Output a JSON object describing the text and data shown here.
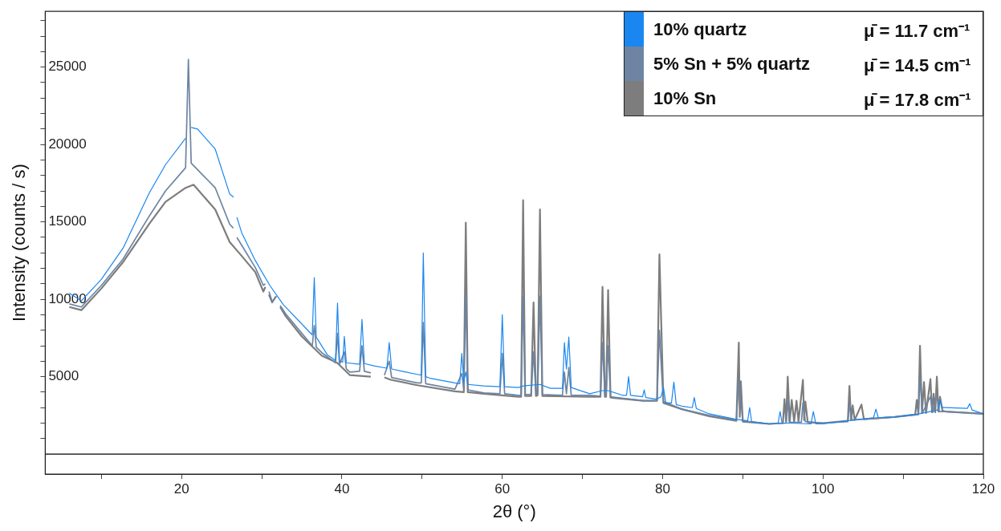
{
  "chart_data": {
    "type": "line",
    "xlabel": "2θ (°)",
    "ylabel": "Intensity (counts / s)",
    "xlim": [
      3,
      120
    ],
    "ylim": [
      -1300,
      28600
    ],
    "xticks": [
      {
        "value": 10,
        "label": null
      },
      20,
      {
        "value": 30,
        "label": null
      },
      40,
      {
        "value": 50,
        "label": null
      },
      60,
      {
        "value": 70,
        "label": null
      },
      80,
      {
        "value": 90,
        "label": null
      },
      100,
      {
        "value": 110,
        "label": null
      },
      120
    ],
    "yticks": [
      {
        "value": 1000,
        "label": null
      },
      {
        "value": 2000,
        "label": null
      },
      {
        "value": 3000,
        "label": null
      },
      {
        "value": 4000,
        "label": null
      },
      5000,
      {
        "value": 6000,
        "label": null
      },
      {
        "value": 7000,
        "label": null
      },
      {
        "value": 8000,
        "label": null
      },
      {
        "value": 9000,
        "label": null
      },
      10000,
      {
        "value": 11000,
        "label": null
      },
      {
        "value": 12000,
        "label": null
      },
      {
        "value": 13000,
        "label": null
      },
      {
        "value": 14000,
        "label": null
      },
      15000,
      {
        "value": 16000,
        "label": null
      },
      {
        "value": 17000,
        "label": null
      },
      {
        "value": 18000,
        "label": null
      },
      {
        "value": 19000,
        "label": null
      },
      20000,
      {
        "value": 21000,
        "label": null
      },
      {
        "value": 22000,
        "label": null
      },
      {
        "value": 23000,
        "label": null
      },
      {
        "value": 24000,
        "label": null
      },
      25000,
      {
        "value": 26000,
        "label": null
      },
      {
        "value": 27000,
        "label": null
      },
      {
        "value": 28000,
        "label": null
      }
    ],
    "legend": "top right",
    "grid": false,
    "ref_lines": [
      {
        "axis": "y",
        "value": 0,
        "color": "#000000"
      }
    ],
    "annotations": [
      "μ̄ = 11.7 cm⁻¹",
      "μ̄ = 14.5 cm⁻¹",
      "μ̄ = 17.8 cm⁻¹"
    ],
    "series": [
      {
        "name": "10% quartz",
        "color": "#1a87f0",
        "x": [
          6,
          7.5,
          10,
          12.7,
          16,
          18,
          20.5,
          20.85,
          21.2,
          22,
          24.2,
          26,
          26.5,
          26.65,
          26.9,
          27.5,
          29.2,
          31,
          32.7,
          35,
          36.3,
          36.55,
          36.8,
          38.2,
          39.2,
          39.45,
          39.7,
          40.1,
          40.3,
          40.55,
          42.2,
          42.5,
          42.8,
          44,
          45.6,
          45.9,
          46.2,
          47.5,
          49.4,
          49.9,
          50.15,
          50.45,
          51,
          54.1,
          54.7,
          54.95,
          55.2,
          55.45,
          55.7,
          57.7,
          59.7,
          60,
          60.3,
          62,
          62.6,
          64.7,
          66,
          67.5,
          67.75,
          68,
          68.3,
          68.6,
          70.9,
          72.5,
          73.2,
          75,
          75.5,
          75.75,
          76,
          77.5,
          77.7,
          77.9,
          79.2,
          79.8,
          80.1,
          80.4,
          81.1,
          81.4,
          81.7,
          82.4,
          83.7,
          83.95,
          84.2,
          85.8,
          89.1,
          90.6,
          90.85,
          91.1,
          93.3,
          94.4,
          94.65,
          94.9,
          96,
          98.5,
          98.8,
          99.1,
          100,
          103,
          106.3,
          106.6,
          106.9,
          108.9,
          112,
          114.3,
          114.6,
          114.9,
          115.3,
          118,
          118.3,
          118.6,
          120
        ],
        "values": [
          10400,
          9900,
          11300,
          13300,
          16900,
          18700,
          20400,
          null,
          21100,
          21000,
          19700,
          16800,
          16600,
          null,
          15300,
          14300,
          12500,
          10900,
          9650,
          8400,
          7700,
          11400,
          7550,
          6400,
          6050,
          9750,
          6000,
          5950,
          7600,
          5900,
          5800,
          8700,
          5850,
          5700,
          5550,
          7200,
          5500,
          5350,
          5150,
          5100,
          13000,
          5000,
          4900,
          4600,
          4550,
          6500,
          4700,
          5300,
          4500,
          4400,
          4350,
          9000,
          4350,
          4300,
          4400,
          4500,
          4250,
          4250,
          7200,
          5500,
          7560,
          4300,
          3900,
          4100,
          4100,
          3800,
          3800,
          5000,
          3800,
          3700,
          4150,
          3650,
          3550,
          3700,
          4300,
          3300,
          3300,
          4650,
          3200,
          3100,
          3000,
          3650,
          2950,
          2600,
          2250,
          2150,
          3000,
          2100,
          1950,
          2000,
          2750,
          2000,
          2000,
          1950,
          2750,
          1950,
          1950,
          2150,
          2350,
          2900,
          2350,
          2400,
          2600,
          2850,
          3500,
          3000,
          3000,
          2950,
          3250,
          2850,
          2600
        ]
      },
      {
        "name": "5% Sn + 5% quartz",
        "color": "#6d85a3",
        "x": [
          6,
          7.5,
          10,
          12.7,
          16,
          18,
          20.5,
          20.85,
          21.2,
          24.2,
          26,
          26.45,
          26.65,
          26.9,
          29.2,
          30.2,
          30.45,
          30.65,
          30.9,
          31.3,
          31.8,
          32,
          32.3,
          33,
          35,
          36.3,
          36.55,
          36.8,
          37.5,
          39.2,
          39.45,
          39.7,
          40.3,
          40.55,
          41,
          42.2,
          42.5,
          42.8,
          43.6,
          43.9,
          44.95,
          45.3,
          45.9,
          46.2,
          49.4,
          49.9,
          50.15,
          50.45,
          54.1,
          54.95,
          55.2,
          55.45,
          55.7,
          57.7,
          59.7,
          60,
          60.3,
          62,
          62.35,
          62.6,
          62.85,
          63.6,
          63.9,
          64.2,
          64.4,
          64.7,
          65,
          67.5,
          67.75,
          68,
          68.3,
          68.6,
          70.9,
          72.25,
          72.5,
          72.8,
          72.95,
          73.2,
          73.5,
          77.6,
          79.3,
          79.6,
          79.85,
          80.1,
          82.4,
          85.8,
          89.2,
          89.5,
          89.75,
          90,
          93.3,
          95.4,
          95.6,
          95.8,
          97.3,
          97.5,
          97.8,
          100,
          103.1,
          103.3,
          103.6,
          108.9,
          111.9,
          112.1,
          112.4,
          113.4,
          113.7,
          114.2,
          114.5,
          115.3,
          120
        ],
        "values": [
          9700,
          9500,
          10900,
          12600,
          15400,
          17000,
          18500,
          25500,
          18800,
          17200,
          14850,
          14600,
          null,
          14000,
          12050,
          10900,
          11000,
          null,
          10500,
          9850,
          10200,
          null,
          9600,
          9050,
          7800,
          7000,
          8300,
          6900,
          6550,
          5900,
          7800,
          5800,
          6600,
          5500,
          5300,
          5350,
          7000,
          5350,
          5250,
          null,
          null,
          5100,
          6000,
          4950,
          4600,
          4600,
          8500,
          4550,
          4200,
          5200,
          4200,
          10400,
          4150,
          3950,
          3900,
          6500,
          3900,
          3800,
          3800,
          10200,
          3850,
          3850,
          6600,
          3850,
          3900,
          10200,
          3850,
          3800,
          5300,
          3900,
          5600,
          3800,
          3800,
          3750,
          7200,
          3750,
          3750,
          7000,
          3700,
          3450,
          3450,
          8000,
          5500,
          3400,
          2900,
          2500,
          2200,
          4800,
          3500,
          2150,
          1950,
          2000,
          3500,
          2050,
          2050,
          3300,
          2100,
          2000,
          2100,
          3200,
          2200,
          2400,
          2550,
          5000,
          2650,
          3700,
          2700,
          3800,
          2750,
          2750,
          2600
        ]
      },
      {
        "name": "10% Sn",
        "color": "#7d7d7d",
        "x": [
          6,
          7.5,
          10,
          12.7,
          16,
          18,
          20.5,
          21.5,
          24.2,
          26,
          27.5,
          29.2,
          30.2,
          30.45,
          30.65,
          30.9,
          31.3,
          31.8,
          32,
          32.3,
          33,
          35,
          37.5,
          39.4,
          41,
          43.6,
          43.9,
          44.95,
          45.3,
          46.1,
          49.4,
          54.1,
          55.2,
          55.45,
          55.7,
          57.7,
          62,
          62.35,
          62.6,
          62.85,
          63.6,
          63.9,
          64.2,
          64.4,
          64.7,
          65,
          70.9,
          72.25,
          72.5,
          72.8,
          72.95,
          73.2,
          73.5,
          77.6,
          79.3,
          79.6,
          79.85,
          80.1,
          82.4,
          85.8,
          89.2,
          89.5,
          89.62,
          89.75,
          90,
          93.3,
          95,
          95.2,
          95.4,
          95.6,
          95.85,
          96.1,
          96.4,
          96.7,
          96.95,
          97.5,
          97.65,
          97.8,
          98.1,
          100,
          103.1,
          103.3,
          103.5,
          103.7,
          103.95,
          104.8,
          105.1,
          108.9,
          111.5,
          111.7,
          111.9,
          112.1,
          112.35,
          112.6,
          112.85,
          113.4,
          113.6,
          113.8,
          114,
          114.2,
          114.4,
          114.6,
          114.9,
          115.3,
          120
        ],
        "values": [
          9500,
          9300,
          10700,
          12400,
          14900,
          16300,
          17200,
          17400,
          15800,
          13700,
          12800,
          11750,
          10500,
          10800,
          null,
          10300,
          9800,
          10200,
          null,
          9500,
          8900,
          7600,
          6350,
          5900,
          5100,
          5000,
          null,
          null,
          4950,
          4800,
          4450,
          4050,
          4000,
          14950,
          4000,
          3900,
          3700,
          3700,
          16400,
          3750,
          3750,
          9800,
          3750,
          3800,
          15800,
          3750,
          3700,
          3700,
          10800,
          3700,
          3700,
          10600,
          3650,
          3450,
          3450,
          12900,
          8000,
          3300,
          2900,
          2450,
          2150,
          7200,
          2400,
          4700,
          2100,
          1950,
          2000,
          3550,
          2100,
          5000,
          2100,
          3500,
          2100,
          3450,
          2100,
          4800,
          2200,
          3400,
          2050,
          2000,
          2150,
          4400,
          2200,
          3150,
          2200,
          3200,
          2250,
          2400,
          2550,
          3500,
          2600,
          7000,
          2650,
          4650,
          2650,
          4850,
          2700,
          3900,
          2700,
          5000,
          2750,
          3700,
          2800,
          2750,
          2600
        ]
      }
    ]
  }
}
